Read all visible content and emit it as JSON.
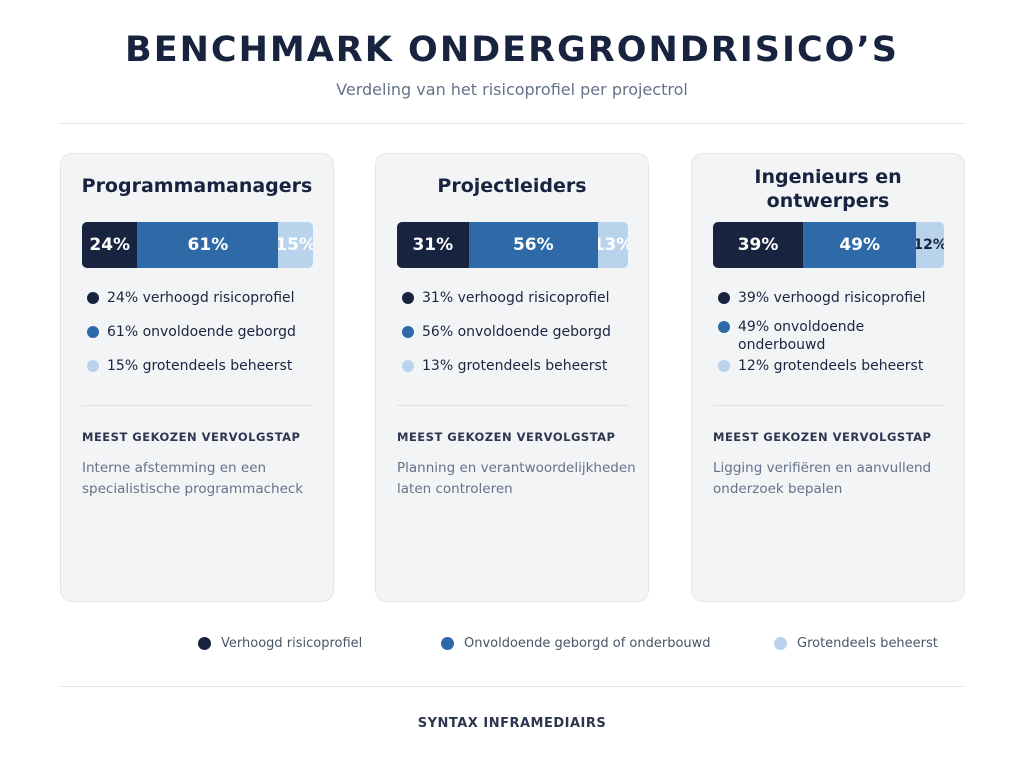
{
  "header": {
    "title": "BENCHMARK ONDERGRONDRISICO’S",
    "subtitle": "Verdeling van het risicoprofiel per projectrol"
  },
  "colors": {
    "high": "#17233f",
    "medium": "#2e6aa8",
    "low": "#b9d3ec"
  },
  "chart_data": {
    "type": "bar",
    "title": "BENCHMARK ONDERGRONDRISICO’S",
    "subtitle": "Verdeling van het risicoprofiel per projectrol",
    "stacked": true,
    "unit": "%",
    "categories": [
      "Programmamanagers",
      "Projectleiders",
      "Ingenieurs en ontwerpers"
    ],
    "series": [
      {
        "name": "Verhoogd risicoprofiel",
        "values": [
          24,
          31,
          39
        ]
      },
      {
        "name": "Onvoldoende geborgd of onderbouwd",
        "values": [
          61,
          56,
          49
        ]
      },
      {
        "name": "Grotendeels beheerst",
        "values": [
          15,
          13,
          12
        ]
      }
    ],
    "legend_position": "bottom"
  },
  "cards": [
    {
      "title": "Programmamanagers",
      "segments": [
        {
          "value": 24,
          "label": "24%"
        },
        {
          "value": 61,
          "label": "61%"
        },
        {
          "value": 15,
          "label": "15%"
        }
      ],
      "items": [
        "24% verhoogd risicoprofiel",
        "61% onvoldoende geborgd",
        "15% grotendeels beheerst"
      ],
      "next_label": "MEEST GEKOZEN VERVOLGSTAP",
      "next_text": "Interne afstemming en een specialistische programmacheck"
    },
    {
      "title": "Projectleiders",
      "segments": [
        {
          "value": 31,
          "label": "31%"
        },
        {
          "value": 56,
          "label": "56%"
        },
        {
          "value": 13,
          "label": "13%"
        }
      ],
      "items": [
        "31% verhoogd risicoprofiel",
        "56% onvoldoende geborgd",
        "13% grotendeels beheerst"
      ],
      "next_label": "MEEST GEKOZEN VERVOLGSTAP",
      "next_text": "Planning en verantwoordelijkheden laten controleren"
    },
    {
      "title": "Ingenieurs en ontwerpers",
      "segments": [
        {
          "value": 39,
          "label": "39%"
        },
        {
          "value": 49,
          "label": "49%"
        },
        {
          "value": 12,
          "label": "12%"
        }
      ],
      "items": [
        "39% verhoogd risicoprofiel",
        "49% onvoldoende onderbouwd",
        "12% grotendeels beheerst"
      ],
      "next_label": "MEEST GEKOZEN VERVOLGSTAP",
      "next_text": "Ligging verifiëren en aanvullend onderzoek bepalen"
    }
  ],
  "legend": [
    "Verhoogd risicoprofiel",
    "Onvoldoende geborgd of onderbouwd",
    "Grotendeels beheerst"
  ],
  "footer": "SYNTAX INFRAMEDIAIRS"
}
